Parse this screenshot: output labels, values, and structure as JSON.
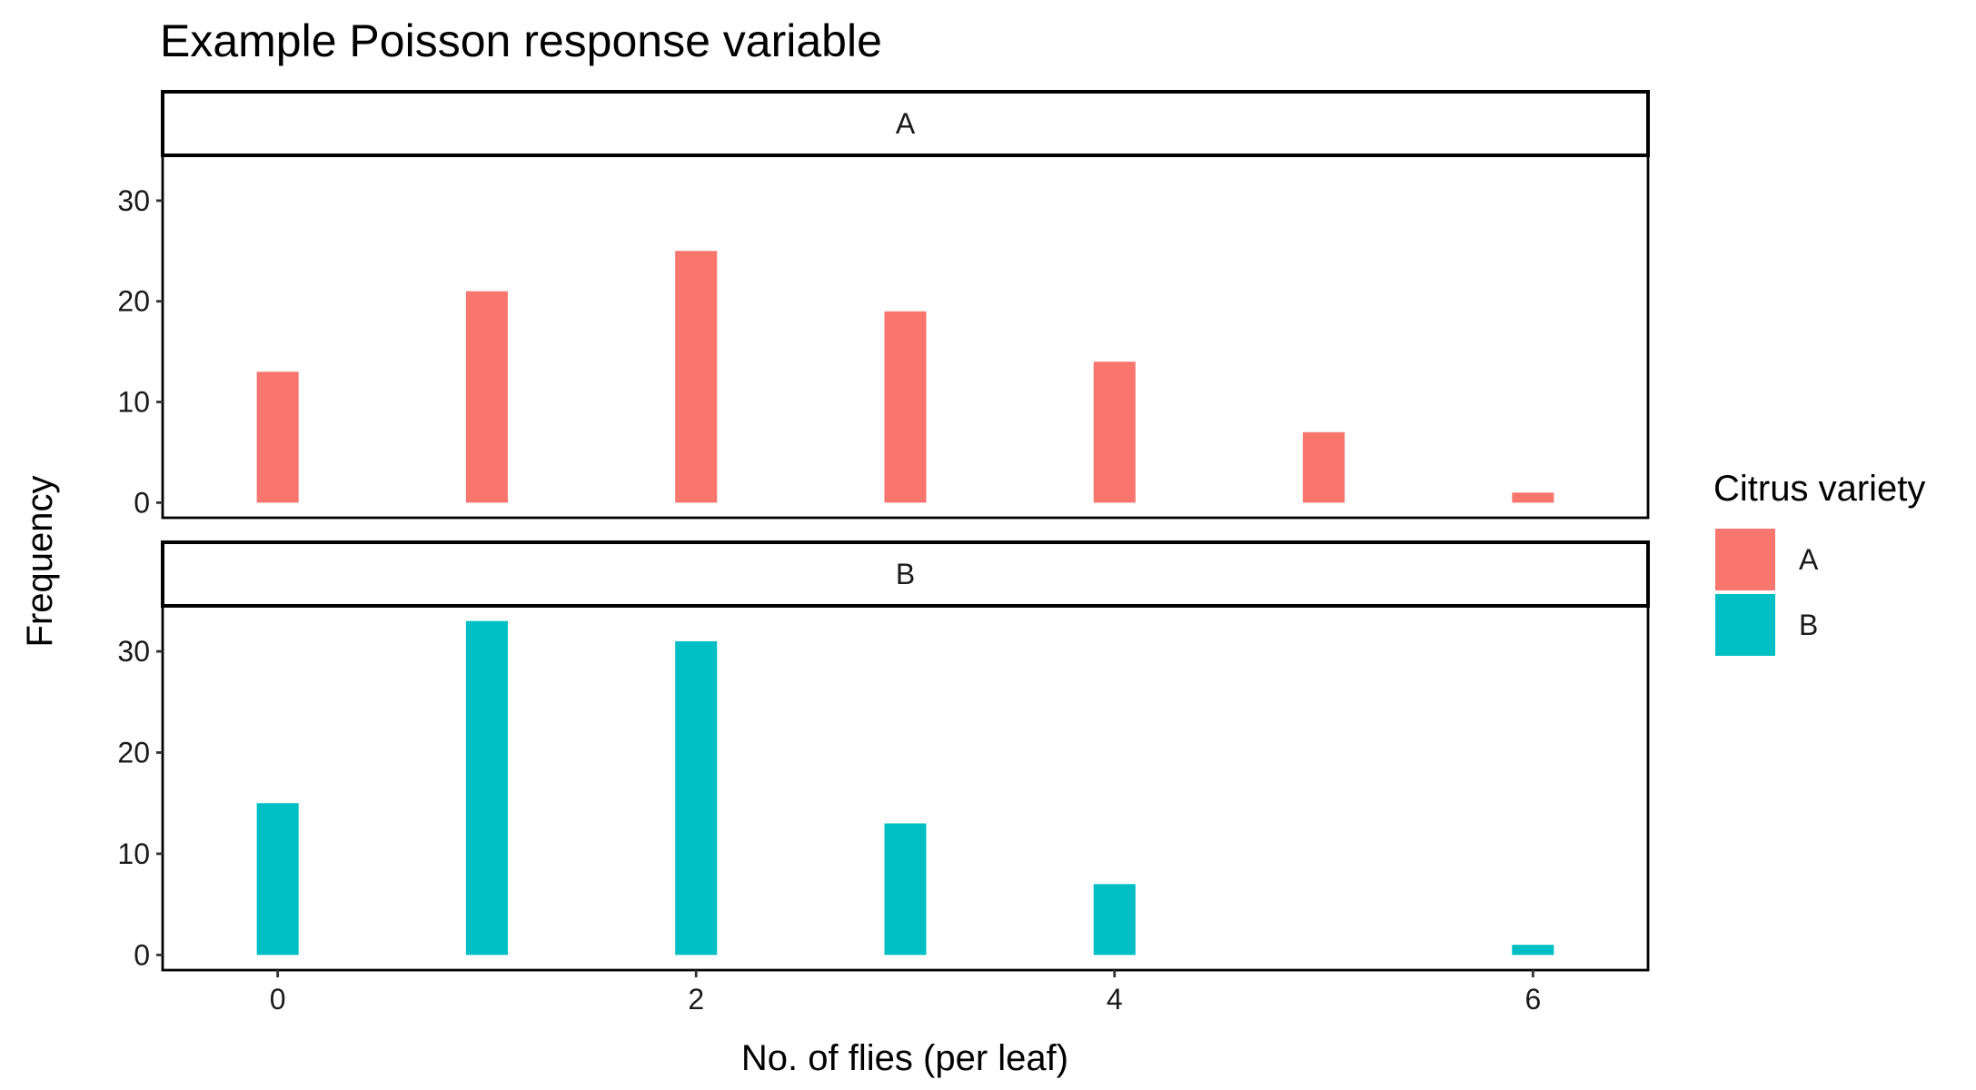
{
  "chart_data": {
    "type": "bar",
    "title": "Example Poisson response variable",
    "xlabel": "No. of flies (per leaf)",
    "ylabel": "Frequency",
    "xlim": [
      -0.55,
      6.55
    ],
    "ylim": [
      -1.5,
      34.5
    ],
    "x_ticks": [
      0,
      2,
      4,
      6
    ],
    "y_ticks": [
      0,
      10,
      20,
      30
    ],
    "bar_width": 0.2,
    "grid": false,
    "legend": {
      "title": "Citrus variety",
      "position": "right",
      "entries": [
        "A",
        "B"
      ]
    },
    "facets": [
      {
        "strip_label": "A",
        "color": "#F8766D",
        "x": [
          0,
          1,
          2,
          3,
          4,
          5,
          6
        ],
        "values": [
          13,
          21,
          25,
          19,
          14,
          7,
          1
        ]
      },
      {
        "strip_label": "B",
        "color": "#00BFC4",
        "x": [
          0,
          1,
          2,
          3,
          4,
          6
        ],
        "values": [
          15,
          33,
          31,
          13,
          7,
          1
        ]
      }
    ]
  }
}
